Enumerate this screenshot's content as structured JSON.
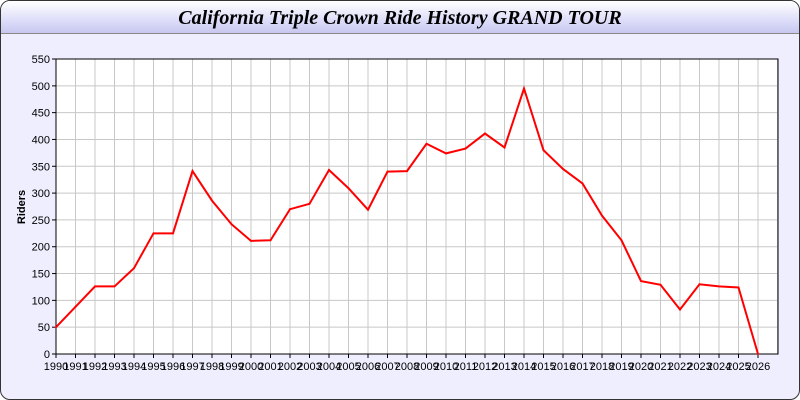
{
  "title": "California Triple Crown Ride History GRAND TOUR",
  "chart_data": {
    "type": "line",
    "title": "California Triple Crown Ride History GRAND TOUR",
    "xlabel": "",
    "ylabel": "Riders",
    "ylim": [
      0,
      550
    ],
    "yticks": [
      0,
      50,
      100,
      150,
      200,
      250,
      300,
      350,
      400,
      450,
      500,
      550
    ],
    "grid": true,
    "line_color": "#ff0000",
    "x": [
      1990,
      1991,
      1992,
      1993,
      1994,
      1995,
      1996,
      1997,
      1998,
      1999,
      2000,
      2001,
      2002,
      2003,
      2004,
      2005,
      2006,
      2007,
      2008,
      2009,
      2010,
      2011,
      2012,
      2013,
      2014,
      2015,
      2016,
      2017,
      2018,
      2019,
      2020,
      2021,
      2022,
      2023,
      2024,
      2025,
      2026
    ],
    "values": [
      50,
      88,
      126,
      126,
      160,
      225,
      225,
      341,
      286,
      242,
      211,
      212,
      270,
      280,
      343,
      309,
      269,
      340,
      341,
      392,
      374,
      383,
      411,
      385,
      495,
      380,
      345,
      318,
      258,
      212,
      136,
      129,
      83,
      130,
      126,
      124,
      0
    ]
  }
}
